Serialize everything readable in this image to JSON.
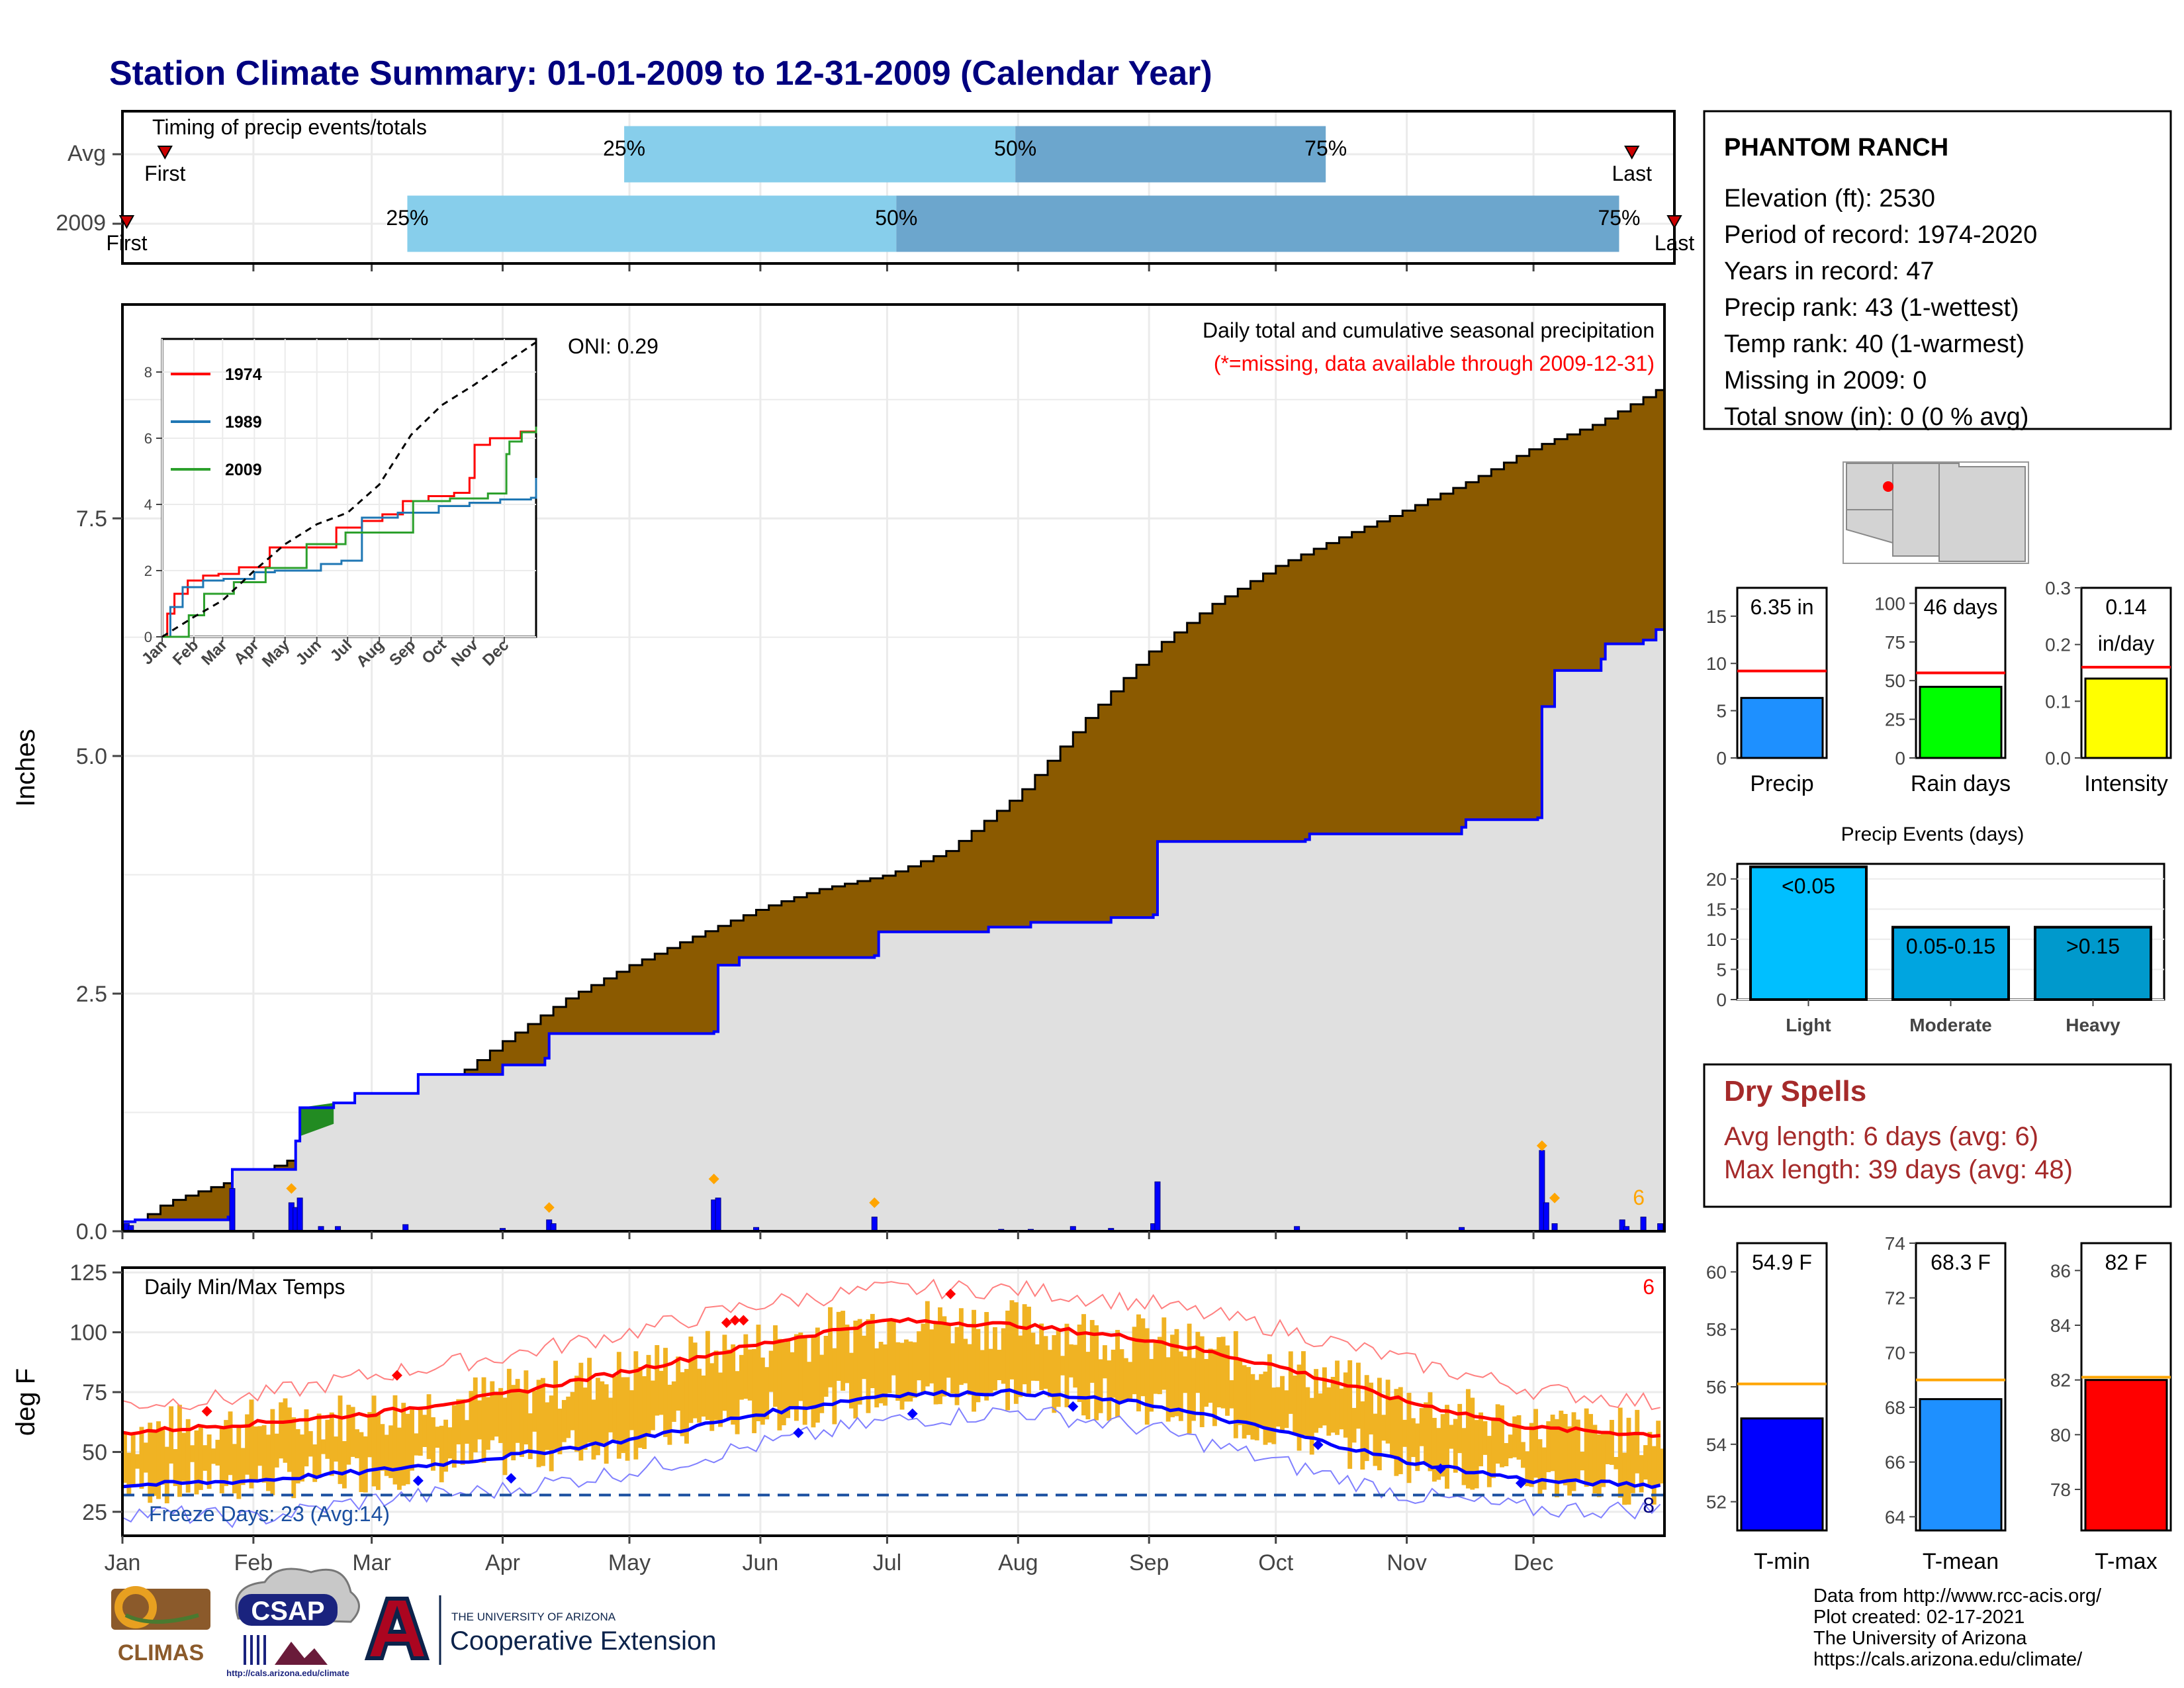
{
  "title": "Station Climate Summary: 01-01-2009 to 12-31-2009 (Calendar Year)",
  "colors": {
    "title": "#00007f",
    "light_blue": "#87ceeb",
    "mid_blue": "#6ca6cd",
    "brown": "#8b5a00",
    "gray": "#e0e0e0",
    "blue_line": "#0000ff",
    "red": "#ff0000",
    "orange": "#ffa500",
    "gold": "#f0b323",
    "dry_red": "#a52a2a",
    "green": "#00ff00",
    "yellow": "#ffff00",
    "precip_blue": "#1e90ff",
    "light_event": "#00bfff",
    "mod_event": "#00a5e0",
    "heavy_event": "#0099cc"
  },
  "months": [
    "Jan",
    "Feb",
    "Mar",
    "Apr",
    "May",
    "Jun",
    "Jul",
    "Aug",
    "Sep",
    "Oct",
    "Nov",
    "Dec"
  ],
  "chart_data": [
    {
      "type": "bar",
      "name": "timing",
      "title": "Timing of precip events/totals",
      "rows": [
        {
          "label": "Avg",
          "first": "First",
          "last": "Last",
          "p25": "25%",
          "p50": "50%",
          "p75": "75%",
          "first_day": 10,
          "p25_day": 118,
          "p50_day": 210,
          "p75_day": 283,
          "last_day": 355
        },
        {
          "label": "2009",
          "first": "First",
          "last": "Last",
          "p25": "25%",
          "p50": "50%",
          "p75": "75%",
          "first_day": 1,
          "p25_day": 67,
          "p50_day": 182,
          "p75_day": 352,
          "last_day": 365
        }
      ]
    },
    {
      "type": "area",
      "name": "cumulative-precip",
      "title": "Daily total and cumulative seasonal precipitation",
      "subtitle": "(*=missing, data available through 2009-12-31)",
      "oni": "ONI: 0.29",
      "ylabel": "Inches",
      "ylim": [
        0,
        9.75
      ],
      "yticks": [
        0.0,
        2.5,
        5.0,
        7.5
      ],
      "missing_count": "6",
      "avg_cumulative": [
        [
          0,
          0
        ],
        [
          10,
          0.3
        ],
        [
          20,
          0.45
        ],
        [
          31,
          0.6
        ],
        [
          45,
          0.85
        ],
        [
          59,
          1.1
        ],
        [
          75,
          1.5
        ],
        [
          90,
          2.0
        ],
        [
          105,
          2.45
        ],
        [
          120,
          2.8
        ],
        [
          135,
          3.1
        ],
        [
          151,
          3.4
        ],
        [
          165,
          3.6
        ],
        [
          181,
          3.75
        ],
        [
          195,
          4.0
        ],
        [
          212,
          4.6
        ],
        [
          228,
          5.4
        ],
        [
          243,
          6.1
        ],
        [
          258,
          6.6
        ],
        [
          273,
          7.0
        ],
        [
          288,
          7.3
        ],
        [
          304,
          7.6
        ],
        [
          319,
          7.9
        ],
        [
          334,
          8.25
        ],
        [
          349,
          8.5
        ],
        [
          365,
          8.9
        ]
      ],
      "obs_cumulative": [
        [
          0,
          0.1
        ],
        [
          3,
          0.12
        ],
        [
          25,
          0.15
        ],
        [
          26,
          0.65
        ],
        [
          40,
          0.65
        ],
        [
          41,
          0.95
        ],
        [
          42,
          1.3
        ],
        [
          50,
          1.35
        ],
        [
          55,
          1.45
        ],
        [
          70,
          1.65
        ],
        [
          90,
          1.75
        ],
        [
          100,
          1.82
        ],
        [
          101,
          2.08
        ],
        [
          140,
          2.1
        ],
        [
          141,
          2.8
        ],
        [
          146,
          2.88
        ],
        [
          178,
          2.9
        ],
        [
          179,
          3.15
        ],
        [
          205,
          3.2
        ],
        [
          215,
          3.25
        ],
        [
          234,
          3.3
        ],
        [
          244,
          3.33
        ],
        [
          245,
          4.1
        ],
        [
          280,
          4.12
        ],
        [
          281,
          4.18
        ],
        [
          317,
          4.25
        ],
        [
          318,
          4.33
        ],
        [
          335,
          4.35
        ],
        [
          336,
          5.52
        ],
        [
          339,
          5.9
        ],
        [
          350,
          6.02
        ],
        [
          351,
          6.18
        ],
        [
          360,
          6.22
        ],
        [
          363,
          6.33
        ],
        [
          365,
          6.35
        ]
      ],
      "daily_bars": [
        [
          1,
          0.08
        ],
        [
          2,
          0.06
        ],
        [
          26,
          0.45
        ],
        [
          40,
          0.3
        ],
        [
          41,
          0.25
        ],
        [
          42,
          0.35
        ],
        [
          47,
          0.05
        ],
        [
          51,
          0.05
        ],
        [
          67,
          0.07
        ],
        [
          90,
          0.03
        ],
        [
          101,
          0.12
        ],
        [
          102,
          0.08
        ],
        [
          140,
          0.33
        ],
        [
          141,
          0.35
        ],
        [
          150,
          0.04
        ],
        [
          178,
          0.15
        ],
        [
          208,
          0.02
        ],
        [
          215,
          0.02
        ],
        [
          225,
          0.05
        ],
        [
          234,
          0.03
        ],
        [
          244,
          0.08
        ],
        [
          245,
          0.52
        ],
        [
          278,
          0.05
        ],
        [
          317,
          0.04
        ],
        [
          336,
          0.85
        ],
        [
          337,
          0.3
        ],
        [
          339,
          0.08
        ],
        [
          355,
          0.12
        ],
        [
          356,
          0.05
        ],
        [
          360,
          0.15
        ],
        [
          364,
          0.08
        ]
      ],
      "markers": [
        [
          40,
          0.45
        ],
        [
          101,
          0.25
        ],
        [
          140,
          0.55
        ],
        [
          178,
          0.3
        ],
        [
          336,
          0.9
        ],
        [
          339,
          0.35
        ]
      ]
    },
    {
      "type": "line",
      "name": "inset-cumulative",
      "ylim": [
        0,
        9
      ],
      "yticks": [
        0,
        2,
        4,
        6,
        8
      ],
      "series": [
        {
          "name": "1974",
          "color": "#ff0000",
          "points": [
            [
              0,
              0
            ],
            [
              5,
              0.7
            ],
            [
              12,
              1.3
            ],
            [
              25,
              1.7
            ],
            [
              40,
              1.85
            ],
            [
              55,
              1.9
            ],
            [
              75,
              2.1
            ],
            [
              105,
              2.7
            ],
            [
              150,
              2.7
            ],
            [
              170,
              3.3
            ],
            [
              195,
              3.5
            ],
            [
              215,
              3.7
            ],
            [
              235,
              4.1
            ],
            [
              260,
              4.25
            ],
            [
              285,
              4.35
            ],
            [
              300,
              4.8
            ],
            [
              305,
              5.8
            ],
            [
              320,
              6.0
            ],
            [
              335,
              6.0
            ],
            [
              350,
              6.2
            ],
            [
              365,
              6.35
            ]
          ]
        },
        {
          "name": "1989",
          "color": "#1f77b4",
          "points": [
            [
              0,
              0
            ],
            [
              8,
              0.9
            ],
            [
              20,
              1.5
            ],
            [
              40,
              1.7
            ],
            [
              60,
              1.75
            ],
            [
              90,
              1.95
            ],
            [
              110,
              2.0
            ],
            [
              150,
              2.0
            ],
            [
              155,
              2.2
            ],
            [
              175,
              2.3
            ],
            [
              195,
              3.6
            ],
            [
              230,
              3.75
            ],
            [
              270,
              3.95
            ],
            [
              300,
              4.05
            ],
            [
              330,
              4.15
            ],
            [
              360,
              4.2
            ],
            [
              365,
              4.8
            ]
          ]
        },
        {
          "name": "2009",
          "color": "#2ca02c",
          "points": [
            [
              0,
              0
            ],
            [
              26,
              0.65
            ],
            [
              41,
              1.3
            ],
            [
              70,
              1.65
            ],
            [
              101,
              2.08
            ],
            [
              141,
              2.8
            ],
            [
              179,
              3.15
            ],
            [
              245,
              4.1
            ],
            [
              281,
              4.18
            ],
            [
              318,
              4.33
            ],
            [
              336,
              5.52
            ],
            [
              339,
              5.9
            ],
            [
              351,
              6.18
            ],
            [
              365,
              6.35
            ]
          ]
        },
        {
          "name": "avg",
          "color": "#000000",
          "points": [
            [
              0,
              0
            ],
            [
              31,
              0.6
            ],
            [
              59,
              1.1
            ],
            [
              90,
              2.0
            ],
            [
              120,
              2.8
            ],
            [
              151,
              3.4
            ],
            [
              181,
              3.75
            ],
            [
              212,
              4.6
            ],
            [
              243,
              6.1
            ],
            [
              273,
              7.0
            ],
            [
              304,
              7.6
            ],
            [
              334,
              8.25
            ],
            [
              365,
              8.9
            ]
          ]
        }
      ]
    },
    {
      "type": "bar",
      "name": "daily-temps",
      "title": "Daily Min/Max Temps",
      "ylabel": "deg F",
      "ylim": [
        15,
        127
      ],
      "yticks": [
        25,
        50,
        75,
        100,
        125
      ],
      "freeze_label": "Freeze Days: 23 (Avg:14)",
      "missing_max": "6",
      "missing_min": "8",
      "freeze_line": 32,
      "avg_max": [
        [
          0,
          58
        ],
        [
          31,
          62
        ],
        [
          59,
          66
        ],
        [
          90,
          74
        ],
        [
          120,
          84
        ],
        [
          151,
          95
        ],
        [
          181,
          105
        ],
        [
          212,
          103
        ],
        [
          243,
          97
        ],
        [
          273,
          86
        ],
        [
          304,
          71
        ],
        [
          334,
          60
        ],
        [
          365,
          57
        ]
      ],
      "avg_min": [
        [
          0,
          36
        ],
        [
          31,
          38
        ],
        [
          59,
          42
        ],
        [
          90,
          48
        ],
        [
          120,
          55
        ],
        [
          151,
          66
        ],
        [
          181,
          74
        ],
        [
          212,
          75
        ],
        [
          243,
          70
        ],
        [
          273,
          59
        ],
        [
          304,
          46
        ],
        [
          334,
          38
        ],
        [
          365,
          36
        ]
      ],
      "rec_max": [
        [
          0,
          70
        ],
        [
          31,
          73
        ],
        [
          59,
          82
        ],
        [
          90,
          90
        ],
        [
          120,
          100
        ],
        [
          151,
          112
        ],
        [
          181,
          118
        ],
        [
          212,
          118
        ],
        [
          243,
          112
        ],
        [
          273,
          102
        ],
        [
          304,
          88
        ],
        [
          334,
          76
        ],
        [
          365,
          70
        ]
      ],
      "rec_min": [
        [
          0,
          25
        ],
        [
          31,
          22
        ],
        [
          59,
          30
        ],
        [
          90,
          34
        ],
        [
          120,
          42
        ],
        [
          151,
          53
        ],
        [
          181,
          63
        ],
        [
          212,
          67
        ],
        [
          243,
          60
        ],
        [
          273,
          46
        ],
        [
          304,
          32
        ],
        [
          334,
          26
        ],
        [
          365,
          26
        ]
      ]
    },
    {
      "type": "bar",
      "name": "precip-summary",
      "panels": [
        {
          "label": "Precip",
          "value_label": "6.35 in",
          "value": 6.35,
          "avg": 9.2,
          "ylim": [
            0,
            18
          ],
          "yticks": [
            0,
            5,
            10,
            15
          ],
          "color": "#1e90ff"
        },
        {
          "label": "Rain days",
          "value_label": "46 days",
          "value": 46,
          "avg": 55,
          "ylim": [
            0,
            110
          ],
          "yticks": [
            0,
            25,
            50,
            75,
            100
          ],
          "color": "#00ff00"
        },
        {
          "label": "Intensity",
          "value_label": "0.14 in/day",
          "value": 0.14,
          "avg": 0.16,
          "ylim": [
            0,
            0.3
          ],
          "yticks": [
            "0.0",
            "0.1",
            "0.2",
            "0.3"
          ],
          "color": "#ffff00"
        }
      ]
    },
    {
      "type": "bar",
      "name": "precip-events",
      "title": "Precip Events (days)",
      "categories": [
        "Light",
        "Moderate",
        "Heavy"
      ],
      "bar_labels": [
        "<0.05",
        "0.05-0.15",
        ">0.15"
      ],
      "values": [
        22,
        12,
        12
      ],
      "ylim": [
        0,
        22.5
      ],
      "yticks": [
        0,
        5,
        10,
        15,
        20
      ]
    },
    {
      "type": "bar",
      "name": "temp-summary",
      "panels": [
        {
          "label": "T-min",
          "value_label": "54.9 F",
          "value": 54.9,
          "avg": 56.1,
          "ylim": [
            51.0,
            61.0
          ],
          "yticks": [
            52,
            54,
            56,
            58,
            60
          ],
          "color": "#0000ff"
        },
        {
          "label": "T-mean",
          "value_label": "68.3 F",
          "value": 68.3,
          "avg": 69.0,
          "ylim": [
            63.5,
            74.0
          ],
          "yticks": [
            64,
            66,
            68,
            70,
            72,
            74
          ],
          "color": "#1e90ff"
        },
        {
          "label": "T-max",
          "value_label": "82 F",
          "value": 82.0,
          "avg": 82.1,
          "ylim": [
            76.5,
            87.0
          ],
          "yticks": [
            78,
            80,
            82,
            84,
            86
          ],
          "color": "#ff0000"
        }
      ]
    }
  ],
  "station": {
    "name": "PHANTOM RANCH",
    "lines": [
      "Elevation (ft): 2530",
      "Period of record: 1974-2020",
      "Years in record: 47",
      "Precip rank: 43 (1-wettest)",
      "Temp rank: 40 (1-warmest)",
      "Missing in 2009: 0",
      "Total snow (in): 0 (0 % avg)"
    ]
  },
  "dry_spells": {
    "title": "Dry Spells",
    "avg": "Avg length: 6 days (avg: 6)",
    "max": "Max length: 39 days (avg: 48)"
  },
  "footer": {
    "lines": [
      "Data from http://www.rcc-acis.org/",
      "Plot created: 02-17-2021",
      "The University of Arizona",
      "https://cals.arizona.edu/climate/"
    ],
    "climas": "CLIMAS",
    "csap": "CSAP",
    "csap_url": "http://cals.arizona.edu/climate",
    "ua_small": "THE UNIVERSITY OF ARIZONA",
    "ua_big": "Cooperative Extension"
  }
}
